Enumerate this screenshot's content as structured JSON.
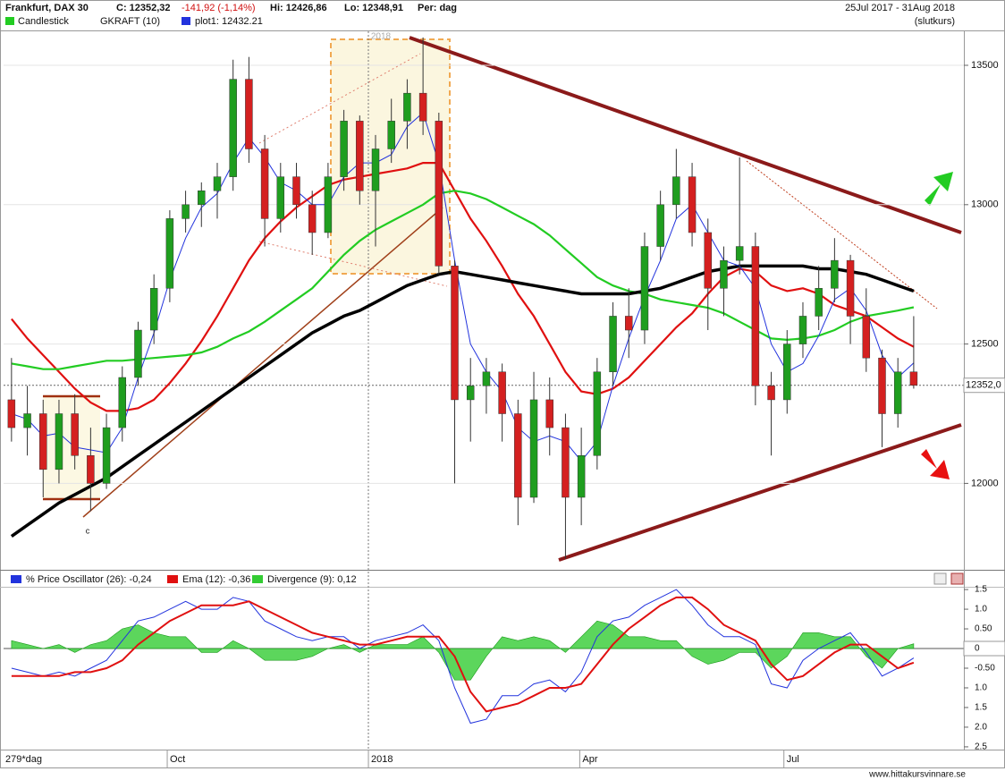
{
  "chart_data": [
    {
      "type": "candlestick",
      "title": "Frankfurt, DAX 30",
      "header": {
        "close": "C: 12352,32",
        "change": "-141,92 (-1,14%)",
        "high": "Hi: 12426,86",
        "low": "Lo: 12348,91",
        "period": "Per: dag",
        "range": "25Jul 2017 - 31Aug 2018",
        "price_type": "(slutkurs)"
      },
      "indicator_label": "GKRAFT (10)",
      "candles_name": "Candlestick",
      "candles_color": "#22cc22",
      "up_color": "#1f9e1f",
      "down_color": "#d42020",
      "x": [
        0,
        1,
        2,
        3,
        4,
        5,
        6,
        7,
        8,
        9,
        10,
        11,
        12,
        13,
        14,
        15,
        16,
        17,
        18,
        19,
        20,
        21,
        22,
        23,
        24,
        25,
        26,
        27,
        28,
        29,
        30,
        31,
        32,
        33,
        34,
        35,
        36,
        37,
        38,
        39,
        40,
        41,
        42,
        43,
        44,
        45,
        46,
        47,
        48,
        49,
        50,
        51,
        52,
        53,
        54,
        55,
        56,
        57
      ],
      "ohlc": [
        [
          12300,
          12450,
          12150,
          12200
        ],
        [
          12200,
          12350,
          12100,
          12250
        ],
        [
          12250,
          12300,
          11950,
          12050
        ],
        [
          12050,
          12300,
          12000,
          12250
        ],
        [
          12250,
          12320,
          12050,
          12100
        ],
        [
          12100,
          12200,
          11900,
          12000
        ],
        [
          12000,
          12250,
          11980,
          12200
        ],
        [
          12200,
          12420,
          12150,
          12380
        ],
        [
          12380,
          12580,
          12350,
          12550
        ],
        [
          12550,
          12750,
          12500,
          12700
        ],
        [
          12700,
          12980,
          12650,
          12950
        ],
        [
          12950,
          13050,
          12900,
          13000
        ],
        [
          13000,
          13080,
          12920,
          13050
        ],
        [
          13050,
          13150,
          12950,
          13100
        ],
        [
          13100,
          13520,
          13050,
          13450
        ],
        [
          13450,
          13530,
          13150,
          13200
        ],
        [
          13200,
          13250,
          12850,
          12950
        ],
        [
          12950,
          13150,
          12900,
          13100
        ],
        [
          13100,
          13150,
          12950,
          13000
        ],
        [
          13000,
          13050,
          12820,
          12900
        ],
        [
          12900,
          13150,
          12880,
          13100
        ],
        [
          13100,
          13340,
          13050,
          13300
        ],
        [
          13300,
          13320,
          13000,
          13050
        ],
        [
          13050,
          13250,
          12850,
          13200
        ],
        [
          13200,
          13380,
          13150,
          13300
        ],
        [
          13300,
          13450,
          13200,
          13400
        ],
        [
          13400,
          13600,
          13250,
          13300
        ],
        [
          13300,
          13330,
          12750,
          12780
        ],
        [
          12780,
          12800,
          12000,
          12300
        ],
        [
          12300,
          12450,
          12150,
          12350
        ],
        [
          12350,
          12450,
          12250,
          12400
        ],
        [
          12400,
          12430,
          12150,
          12250
        ],
        [
          12250,
          12300,
          11850,
          11950
        ],
        [
          11950,
          12400,
          11930,
          12300
        ],
        [
          12300,
          12380,
          12100,
          12200
        ],
        [
          12200,
          12250,
          11730,
          11950
        ],
        [
          11950,
          12200,
          11850,
          12100
        ],
        [
          12100,
          12450,
          12050,
          12400
        ],
        [
          12400,
          12650,
          12350,
          12600
        ],
        [
          12600,
          12700,
          12450,
          12550
        ],
        [
          12550,
          12900,
          12500,
          12850
        ],
        [
          12850,
          13050,
          12800,
          13000
        ],
        [
          13000,
          13200,
          12950,
          13100
        ],
        [
          13100,
          13150,
          12850,
          12900
        ],
        [
          12900,
          12950,
          12550,
          12700
        ],
        [
          12700,
          12850,
          12600,
          12800
        ],
        [
          12800,
          13170,
          12750,
          12850
        ],
        [
          12850,
          12900,
          12280,
          12350
        ],
        [
          12350,
          12400,
          12100,
          12300
        ],
        [
          12300,
          12550,
          12250,
          12500
        ],
        [
          12500,
          12650,
          12450,
          12600
        ],
        [
          12600,
          12780,
          12550,
          12700
        ],
        [
          12700,
          12880,
          12650,
          12800
        ],
        [
          12800,
          12820,
          12500,
          12600
        ],
        [
          12600,
          12700,
          12400,
          12450
        ],
        [
          12450,
          12480,
          12130,
          12250
        ],
        [
          12250,
          12450,
          12200,
          12400
        ],
        [
          12400,
          12600,
          12340,
          12352
        ]
      ],
      "series": [
        {
          "name": "plot1: 12432.21",
          "color": "#2233dd",
          "values": [
            12250,
            12230,
            12170,
            12180,
            12130,
            12120,
            12110,
            12200,
            12380,
            12540,
            12730,
            12880,
            12990,
            13040,
            13150,
            13240,
            13170,
            13080,
            13050,
            13000,
            13000,
            13100,
            13150,
            13150,
            13180,
            13280,
            13330,
            13150,
            12800,
            12500,
            12400,
            12330,
            12200,
            12150,
            12170,
            12150,
            12080,
            12150,
            12350,
            12520,
            12670,
            12800,
            12950,
            13000,
            12900,
            12800,
            12780,
            12700,
            12500,
            12400,
            12430,
            12530,
            12660,
            12700,
            12620,
            12460,
            12380,
            12432.21
          ]
        }
      ],
      "lines": [
        {
          "color": "#e01010",
          "values": [
            12590,
            12520,
            12460,
            12400,
            12340,
            12290,
            12260,
            12260,
            12270,
            12300,
            12360,
            12430,
            12510,
            12600,
            12700,
            12800,
            12880,
            12940,
            12990,
            13030,
            13070,
            13090,
            13100,
            13110,
            13120,
            13130,
            13150,
            13150,
            13050,
            12950,
            12870,
            12780,
            12680,
            12600,
            12500,
            12400,
            12330,
            12320,
            12340,
            12380,
            12440,
            12500,
            12560,
            12610,
            12680,
            12740,
            12770,
            12760,
            12710,
            12690,
            12700,
            12680,
            12640,
            12620,
            12600,
            12560,
            12520,
            12490
          ]
        },
        {
          "color": "#22cc22",
          "values": [
            12430,
            12420,
            12410,
            12410,
            12420,
            12430,
            12440,
            12440,
            12445,
            12450,
            12455,
            12460,
            12470,
            12490,
            12520,
            12545,
            12580,
            12620,
            12660,
            12700,
            12760,
            12820,
            12870,
            12910,
            12940,
            12970,
            13000,
            13040,
            13050,
            13040,
            13020,
            12990,
            12960,
            12930,
            12890,
            12840,
            12790,
            12740,
            12710,
            12690,
            12680,
            12660,
            12650,
            12640,
            12630,
            12610,
            12580,
            12550,
            12520,
            12515,
            12520,
            12530,
            12550,
            12580,
            12600,
            12610,
            12620,
            12632
          ]
        },
        {
          "color": "#000000",
          "values": [
            11810,
            11850,
            11890,
            11930,
            11960,
            11990,
            12020,
            12060,
            12100,
            12140,
            12180,
            12220,
            12260,
            12300,
            12340,
            12380,
            12420,
            12460,
            12500,
            12540,
            12570,
            12600,
            12620,
            12650,
            12680,
            12710,
            12730,
            12750,
            12760,
            12750,
            12740,
            12730,
            12720,
            12710,
            12700,
            12690,
            12680,
            12680,
            12680,
            12680,
            12690,
            12700,
            12720,
            12740,
            12760,
            12770,
            12780,
            12780,
            12780,
            12780,
            12780,
            12770,
            12770,
            12760,
            12750,
            12730,
            12710,
            12690
          ]
        }
      ],
      "last_price": {
        "value": 12352,
        "label": "12352,0"
      },
      "annotations": [
        "2018",
        "c"
      ],
      "xlim": [
        -0.5,
        60
      ],
      "ylim": [
        11690,
        13622
      ],
      "xticks": [
        {
          "value": 9.84,
          "label": "Oct"
        },
        {
          "value": 22.55,
          "label": "2018"
        },
        {
          "value": 35.9,
          "label": "Apr"
        },
        {
          "value": 48.8,
          "label": "Jul"
        }
      ],
      "yticks": [
        12000,
        12500,
        13000,
        13500
      ],
      "grid": true,
      "bar_count": "279*dag",
      "source": "www.hittakursvinnare.se"
    },
    {
      "type": "line",
      "x": [
        0,
        1,
        2,
        3,
        4,
        5,
        6,
        7,
        8,
        9,
        10,
        11,
        12,
        13,
        14,
        15,
        16,
        17,
        18,
        19,
        20,
        21,
        22,
        23,
        24,
        25,
        26,
        27,
        28,
        29,
        30,
        31,
        32,
        33,
        34,
        35,
        36,
        37,
        38,
        39,
        40,
        41,
        42,
        43,
        44,
        45,
        46,
        47,
        48,
        49,
        50,
        51,
        52,
        53,
        54,
        55,
        56,
        57
      ],
      "xlim": [
        -0.5,
        60
      ],
      "ylim": [
        -2.57,
        1.57
      ],
      "yticks": [
        1.5,
        {
          "value": 1,
          "label": "1.0"
        },
        {
          "value": 0.5,
          "label": "0.50"
        },
        0,
        {
          "value": -0.5,
          "label": "-0.50"
        },
        {
          "value": -1,
          "label": "1.0"
        },
        {
          "value": -1.5,
          "label": "1.5"
        },
        {
          "value": -2,
          "label": "2.0"
        },
        {
          "value": -2.5,
          "label": "2.5"
        }
      ],
      "series": [
        {
          "name": "% Price Oscillator (26): -0,24",
          "color": "#2233dd",
          "values": [
            -0.5,
            -0.6,
            -0.7,
            -0.6,
            -0.7,
            -0.5,
            -0.3,
            0.2,
            0.7,
            0.8,
            1.0,
            1.2,
            1.0,
            1.0,
            1.3,
            1.2,
            0.7,
            0.5,
            0.3,
            0.2,
            0.3,
            0.3,
            0,
            0.2,
            0.3,
            0.4,
            0.6,
            0.2,
            -1.0,
            -1.9,
            -1.8,
            -1.2,
            -1.2,
            -0.9,
            -0.8,
            -1.1,
            -0.6,
            0.3,
            0.7,
            0.8,
            1.1,
            1.3,
            1.5,
            1.1,
            0.6,
            0.3,
            0.3,
            0.1,
            -0.9,
            -1.0,
            -0.3,
            0.0,
            0.2,
            0.4,
            -0.1,
            -0.7,
            -0.5,
            -0.24
          ]
        },
        {
          "name": "Ema (12): -0,36",
          "color": "#e01010",
          "values": [
            -0.7,
            -0.7,
            -0.7,
            -0.7,
            -0.6,
            -0.6,
            -0.5,
            -0.3,
            0.1,
            0.4,
            0.7,
            0.9,
            1.1,
            1.1,
            1.1,
            1.2,
            1.0,
            0.8,
            0.6,
            0.4,
            0.3,
            0.2,
            0.1,
            0.1,
            0.2,
            0.3,
            0.3,
            0.3,
            -0.2,
            -1.1,
            -1.6,
            -1.5,
            -1.4,
            -1.2,
            -1.0,
            -1.0,
            -0.9,
            -0.4,
            0.1,
            0.5,
            0.8,
            1.1,
            1.3,
            1.3,
            1.0,
            0.6,
            0.4,
            0.2,
            -0.4,
            -0.8,
            -0.7,
            -0.4,
            -0.1,
            0.1,
            0.1,
            -0.2,
            -0.5,
            -0.36
          ]
        },
        {
          "name": "Divergence (9): 0,12",
          "color": "#33cc33",
          "area": true,
          "values": [
            0.2,
            0.1,
            0,
            0.1,
            -0.1,
            0.1,
            0.2,
            0.5,
            0.6,
            0.4,
            0.3,
            0.3,
            -0.1,
            -0.1,
            0.2,
            0,
            -0.3,
            -0.3,
            -0.3,
            -0.2,
            0,
            0.1,
            -0.1,
            0.1,
            0.1,
            0.1,
            0.3,
            -0.1,
            -0.8,
            -0.8,
            -0.2,
            0.3,
            0.2,
            0.3,
            0.2,
            -0.1,
            0.3,
            0.7,
            0.6,
            0.3,
            0.3,
            0.2,
            0.2,
            -0.2,
            -0.4,
            -0.3,
            -0.1,
            -0.1,
            -0.5,
            -0.2,
            0.4,
            0.4,
            0.3,
            0.3,
            -0.2,
            -0.5,
            0,
            0.12
          ]
        }
      ]
    }
  ]
}
